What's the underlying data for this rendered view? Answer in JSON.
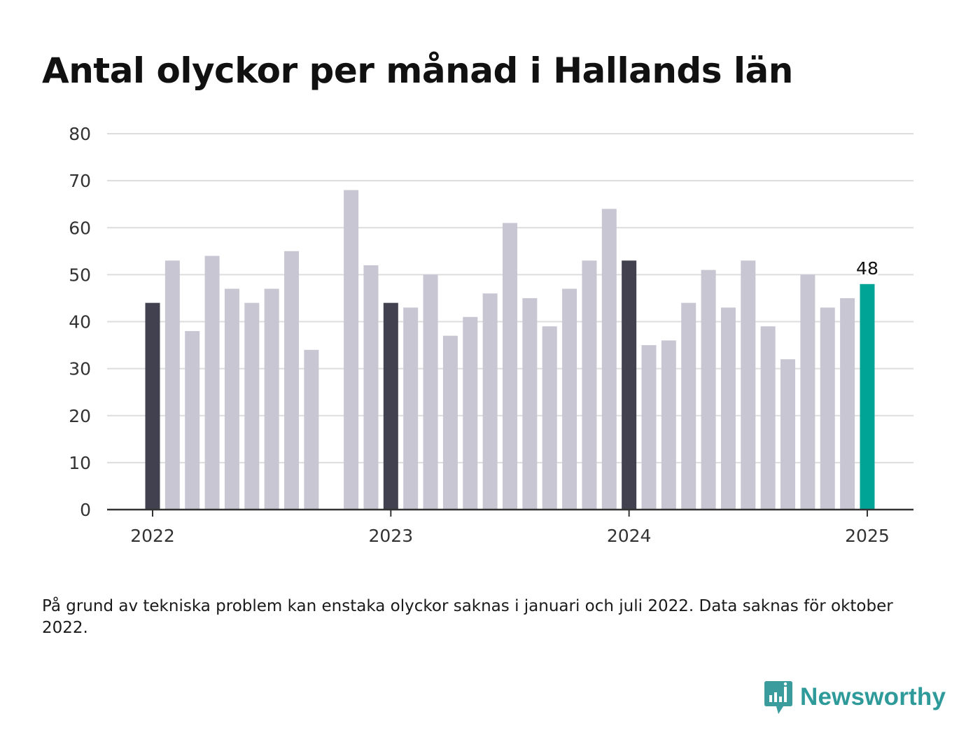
{
  "title": "Antal olyckor per månad i Hallands län",
  "chart_data": {
    "type": "bar",
    "title": "Antal olyckor per månad i Hallands län",
    "xlabel": "",
    "ylabel": "",
    "ylim": [
      0,
      80
    ],
    "yticks": [
      "0",
      "10",
      "20",
      "30",
      "40",
      "50",
      "60",
      "70",
      "80"
    ],
    "xticks": [
      {
        "label": "2022",
        "month": 0
      },
      {
        "label": "2023",
        "month": 12
      },
      {
        "label": "2024",
        "month": 24
      },
      {
        "label": "2025",
        "month": 36
      }
    ],
    "categories": [
      "2022-01",
      "2022-02",
      "2022-03",
      "2022-04",
      "2022-05",
      "2022-06",
      "2022-07",
      "2022-08",
      "2022-09",
      "2022-10",
      "2022-11",
      "2022-12",
      "2023-01",
      "2023-02",
      "2023-03",
      "2023-04",
      "2023-05",
      "2023-06",
      "2023-07",
      "2023-08",
      "2023-09",
      "2023-10",
      "2023-11",
      "2023-12",
      "2024-01",
      "2024-02",
      "2024-03",
      "2024-04",
      "2024-05",
      "2024-06",
      "2024-07",
      "2024-08",
      "2024-09",
      "2024-10",
      "2024-11",
      "2024-12",
      "2025-01"
    ],
    "values": [
      44,
      53,
      38,
      54,
      47,
      44,
      47,
      55,
      34,
      null,
      68,
      52,
      44,
      43,
      50,
      37,
      41,
      46,
      61,
      45,
      39,
      47,
      53,
      64,
      53,
      35,
      36,
      44,
      51,
      43,
      53,
      39,
      32,
      50,
      43,
      45,
      48
    ],
    "highlight_label": "48",
    "grid": true,
    "colors": {
      "january": "#42414f",
      "other": "#c8c6d2",
      "latest": "#00a497",
      "grid": "#dddddd",
      "axis": "#333333"
    }
  },
  "note": "På grund av tekniska problem kan enstaka olyckor saknas i januari och juli 2022. Data saknas för oktober 2022.",
  "logo": {
    "name": "Newsworthy",
    "icon": "newsworthy-logo-icon",
    "color": "#2f9a9a"
  }
}
